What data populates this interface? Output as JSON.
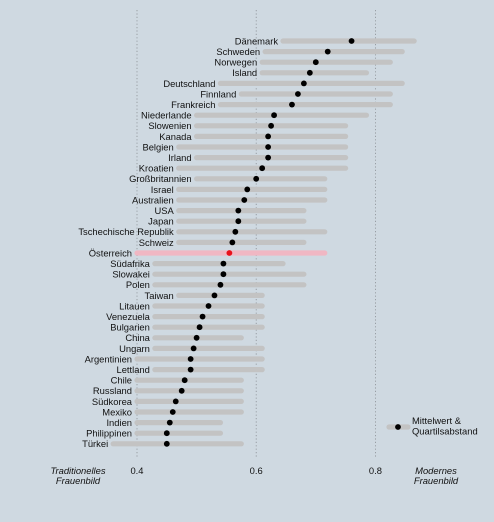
{
  "chart_data": {
    "type": "dot-range",
    "xlim": [
      0.3,
      0.85
    ],
    "xticks": [
      "0.4",
      "0.6",
      "0.8"
    ],
    "grid": "vertical dotted lines at ticks",
    "left_label": [
      "Traditionelles",
      "Frauenbild"
    ],
    "right_label": [
      "Modernes",
      "Frauenbild"
    ],
    "legend": {
      "label": [
        "Mittelwert &",
        "Quartilsabstand"
      ],
      "position": "bottom-right"
    },
    "colors": {
      "background": "#cfd9e1",
      "bar": "#c3c3c3",
      "dot": "#000000",
      "highlight_bar": "#f0b7c3",
      "highlight_dot": "#e8101a",
      "grid": "#8a8f94"
    },
    "highlight": "Österreich",
    "rows": [
      {
        "label": "Dänemark",
        "mean": 0.76,
        "q1": 0.645,
        "q3": 0.865
      },
      {
        "label": "Schweden",
        "mean": 0.72,
        "q1": 0.615,
        "q3": 0.845
      },
      {
        "label": "Norwegen",
        "mean": 0.7,
        "q1": 0.61,
        "q3": 0.825
      },
      {
        "label": "Island",
        "mean": 0.69,
        "q1": 0.61,
        "q3": 0.785
      },
      {
        "label": "Deutschland",
        "mean": 0.68,
        "q1": 0.54,
        "q3": 0.845
      },
      {
        "label": "Finnland",
        "mean": 0.67,
        "q1": 0.575,
        "q3": 0.825
      },
      {
        "label": "Frankreich",
        "mean": 0.66,
        "q1": 0.54,
        "q3": 0.825
      },
      {
        "label": "Niederlande",
        "mean": 0.63,
        "q1": 0.5,
        "q3": 0.785
      },
      {
        "label": "Slowenien",
        "mean": 0.625,
        "q1": 0.5,
        "q3": 0.75
      },
      {
        "label": "Kanada",
        "mean": 0.62,
        "q1": 0.5,
        "q3": 0.75
      },
      {
        "label": "Belgien",
        "mean": 0.62,
        "q1": 0.47,
        "q3": 0.75
      },
      {
        "label": "Irland",
        "mean": 0.62,
        "q1": 0.5,
        "q3": 0.75
      },
      {
        "label": "Kroatien",
        "mean": 0.61,
        "q1": 0.47,
        "q3": 0.75
      },
      {
        "label": "Großbritannien",
        "mean": 0.6,
        "q1": 0.5,
        "q3": 0.715
      },
      {
        "label": "Israel",
        "mean": 0.585,
        "q1": 0.47,
        "q3": 0.715
      },
      {
        "label": "Australien",
        "mean": 0.58,
        "q1": 0.47,
        "q3": 0.715
      },
      {
        "label": "USA",
        "mean": 0.57,
        "q1": 0.47,
        "q3": 0.68
      },
      {
        "label": "Japan",
        "mean": 0.57,
        "q1": 0.47,
        "q3": 0.68
      },
      {
        "label": "Tschechische Republik",
        "mean": 0.565,
        "q1": 0.47,
        "q3": 0.715
      },
      {
        "label": "Schweiz",
        "mean": 0.56,
        "q1": 0.47,
        "q3": 0.68
      },
      {
        "label": "Österreich",
        "mean": 0.555,
        "q1": 0.4,
        "q3": 0.715
      },
      {
        "label": "Südafrika",
        "mean": 0.545,
        "q1": 0.43,
        "q3": 0.645
      },
      {
        "label": "Slowakei",
        "mean": 0.545,
        "q1": 0.43,
        "q3": 0.68
      },
      {
        "label": "Polen",
        "mean": 0.54,
        "q1": 0.43,
        "q3": 0.68
      },
      {
        "label": "Taiwan",
        "mean": 0.53,
        "q1": 0.47,
        "q3": 0.61
      },
      {
        "label": "Litauen",
        "mean": 0.52,
        "q1": 0.43,
        "q3": 0.61
      },
      {
        "label": "Venezuela",
        "mean": 0.51,
        "q1": 0.43,
        "q3": 0.61
      },
      {
        "label": "Bulgarien",
        "mean": 0.505,
        "q1": 0.43,
        "q3": 0.61
      },
      {
        "label": "China",
        "mean": 0.5,
        "q1": 0.43,
        "q3": 0.575
      },
      {
        "label": "Ungarn",
        "mean": 0.495,
        "q1": 0.43,
        "q3": 0.61
      },
      {
        "label": "Argentinien",
        "mean": 0.49,
        "q1": 0.4,
        "q3": 0.61
      },
      {
        "label": "Lettland",
        "mean": 0.49,
        "q1": 0.43,
        "q3": 0.61
      },
      {
        "label": "Chile",
        "mean": 0.48,
        "q1": 0.4,
        "q3": 0.575
      },
      {
        "label": "Russland",
        "mean": 0.475,
        "q1": 0.4,
        "q3": 0.575
      },
      {
        "label": "Südkorea",
        "mean": 0.465,
        "q1": 0.4,
        "q3": 0.575
      },
      {
        "label": "Mexiko",
        "mean": 0.46,
        "q1": 0.4,
        "q3": 0.575
      },
      {
        "label": "Indien",
        "mean": 0.455,
        "q1": 0.4,
        "q3": 0.54
      },
      {
        "label": "Philippinen",
        "mean": 0.45,
        "q1": 0.4,
        "q3": 0.54
      },
      {
        "label": "Türkei",
        "mean": 0.45,
        "q1": 0.36,
        "q3": 0.575
      }
    ]
  }
}
